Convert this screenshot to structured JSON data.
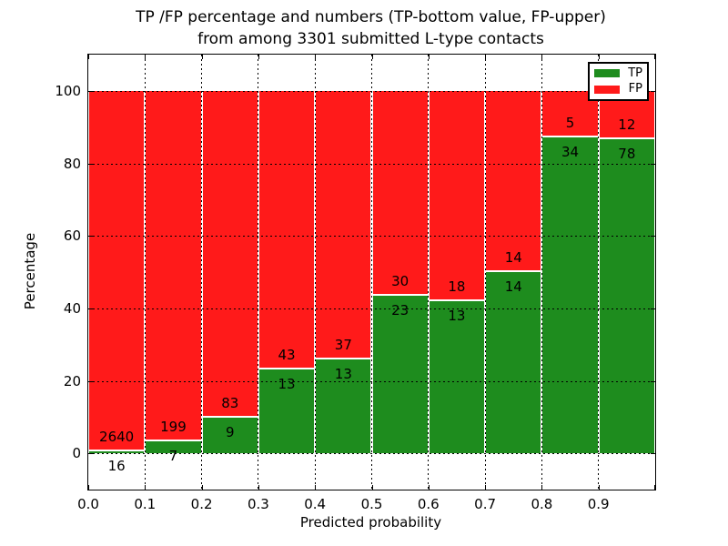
{
  "figure": {
    "title_line1": "TP /FP percentage and numbers (TP-bottom value, FP-upper)",
    "title_line2": "from among 3301 submitted L-type contacts"
  },
  "chart_data": {
    "type": "bar",
    "stacked": true,
    "title": "TP /FP percentage and numbers (TP-bottom value, FP-upper) from among 3301 submitted L-type contacts",
    "xlabel": "Predicted probability",
    "ylabel": "Percentage",
    "xlim": [
      0.0,
      1.0
    ],
    "ylim": [
      -10,
      110
    ],
    "grid": "dotted-black-over-bars",
    "legend_position": "upper right",
    "x_tick_labels": [
      "0.0",
      "0.1",
      "0.2",
      "0.3",
      "0.4",
      "0.5",
      "0.6",
      "0.7",
      "0.8",
      "0.9"
    ],
    "y_ticks": [
      0,
      20,
      40,
      60,
      80,
      100
    ],
    "y_tick_labels": [
      "0",
      "20",
      "40",
      "60",
      "80",
      "100"
    ],
    "series": [
      {
        "name": "TP",
        "color": "#1e8c1e",
        "values": [
          16,
          7,
          9,
          13,
          13,
          23,
          13,
          14,
          34,
          78
        ]
      },
      {
        "name": "FP",
        "color": "#ff1a1a",
        "values": [
          2640,
          199,
          83,
          43,
          37,
          30,
          18,
          14,
          5,
          12
        ]
      }
    ],
    "bins": [
      {
        "x_start": 0.0,
        "x_end": 0.1,
        "tp": 16,
        "fp": 2640,
        "tp_pct": 0.6
      },
      {
        "x_start": 0.1,
        "x_end": 0.2,
        "tp": 7,
        "fp": 199,
        "tp_pct": 3.4
      },
      {
        "x_start": 0.2,
        "x_end": 0.3,
        "tp": 9,
        "fp": 83,
        "tp_pct": 9.8
      },
      {
        "x_start": 0.3,
        "x_end": 0.4,
        "tp": 13,
        "fp": 43,
        "tp_pct": 23.2
      },
      {
        "x_start": 0.4,
        "x_end": 0.5,
        "tp": 13,
        "fp": 37,
        "tp_pct": 26.0
      },
      {
        "x_start": 0.5,
        "x_end": 0.6,
        "tp": 23,
        "fp": 30,
        "tp_pct": 43.4
      },
      {
        "x_start": 0.6,
        "x_end": 0.7,
        "tp": 13,
        "fp": 18,
        "tp_pct": 41.9
      },
      {
        "x_start": 0.7,
        "x_end": 0.8,
        "tp": 14,
        "fp": 14,
        "tp_pct": 50.0
      },
      {
        "x_start": 0.8,
        "x_end": 0.9,
        "tp": 34,
        "fp": 5,
        "tp_pct": 87.2
      },
      {
        "x_start": 0.9,
        "x_end": 1.0,
        "tp": 78,
        "fp": 12,
        "tp_pct": 86.7
      }
    ],
    "total_contacts": 3301,
    "colors": {
      "tp": "#1e8c1e",
      "fp": "#ff1a1a",
      "grid": "#000000",
      "background": "#ffffff"
    }
  }
}
